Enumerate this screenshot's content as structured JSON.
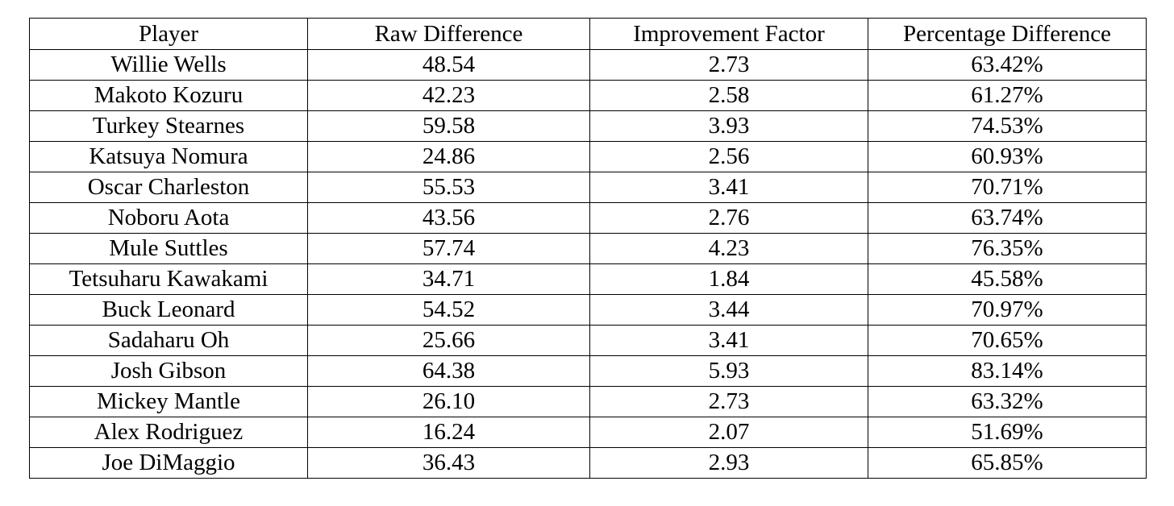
{
  "table": {
    "columns": [
      "Player",
      "Raw Difference",
      "Improvement Factor",
      "Percentage Difference"
    ],
    "rows": [
      [
        "Willie Wells",
        "48.54",
        "2.73",
        "63.42%"
      ],
      [
        "Makoto Kozuru",
        "42.23",
        "2.58",
        "61.27%"
      ],
      [
        "Turkey Stearnes",
        "59.58",
        "3.93",
        "74.53%"
      ],
      [
        "Katsuya Nomura",
        "24.86",
        "2.56",
        "60.93%"
      ],
      [
        "Oscar Charleston",
        "55.53",
        "3.41",
        "70.71%"
      ],
      [
        "Noboru Aota",
        "43.56",
        "2.76",
        "63.74%"
      ],
      [
        "Mule Suttles",
        "57.74",
        "4.23",
        "76.35%"
      ],
      [
        "Tetsuharu Kawakami",
        "34.71",
        "1.84",
        "45.58%"
      ],
      [
        "Buck Leonard",
        "54.52",
        "3.44",
        "70.97%"
      ],
      [
        "Sadaharu Oh",
        "25.66",
        "3.41",
        "70.65%"
      ],
      [
        "Josh Gibson",
        "64.38",
        "5.93",
        "83.14%"
      ],
      [
        "Mickey Mantle",
        "26.10",
        "2.73",
        "63.32%"
      ],
      [
        "Alex Rodriguez",
        "16.24",
        "2.07",
        "51.69%"
      ],
      [
        "Joe DiMaggio",
        "36.43",
        "2.93",
        "65.85%"
      ]
    ]
  }
}
